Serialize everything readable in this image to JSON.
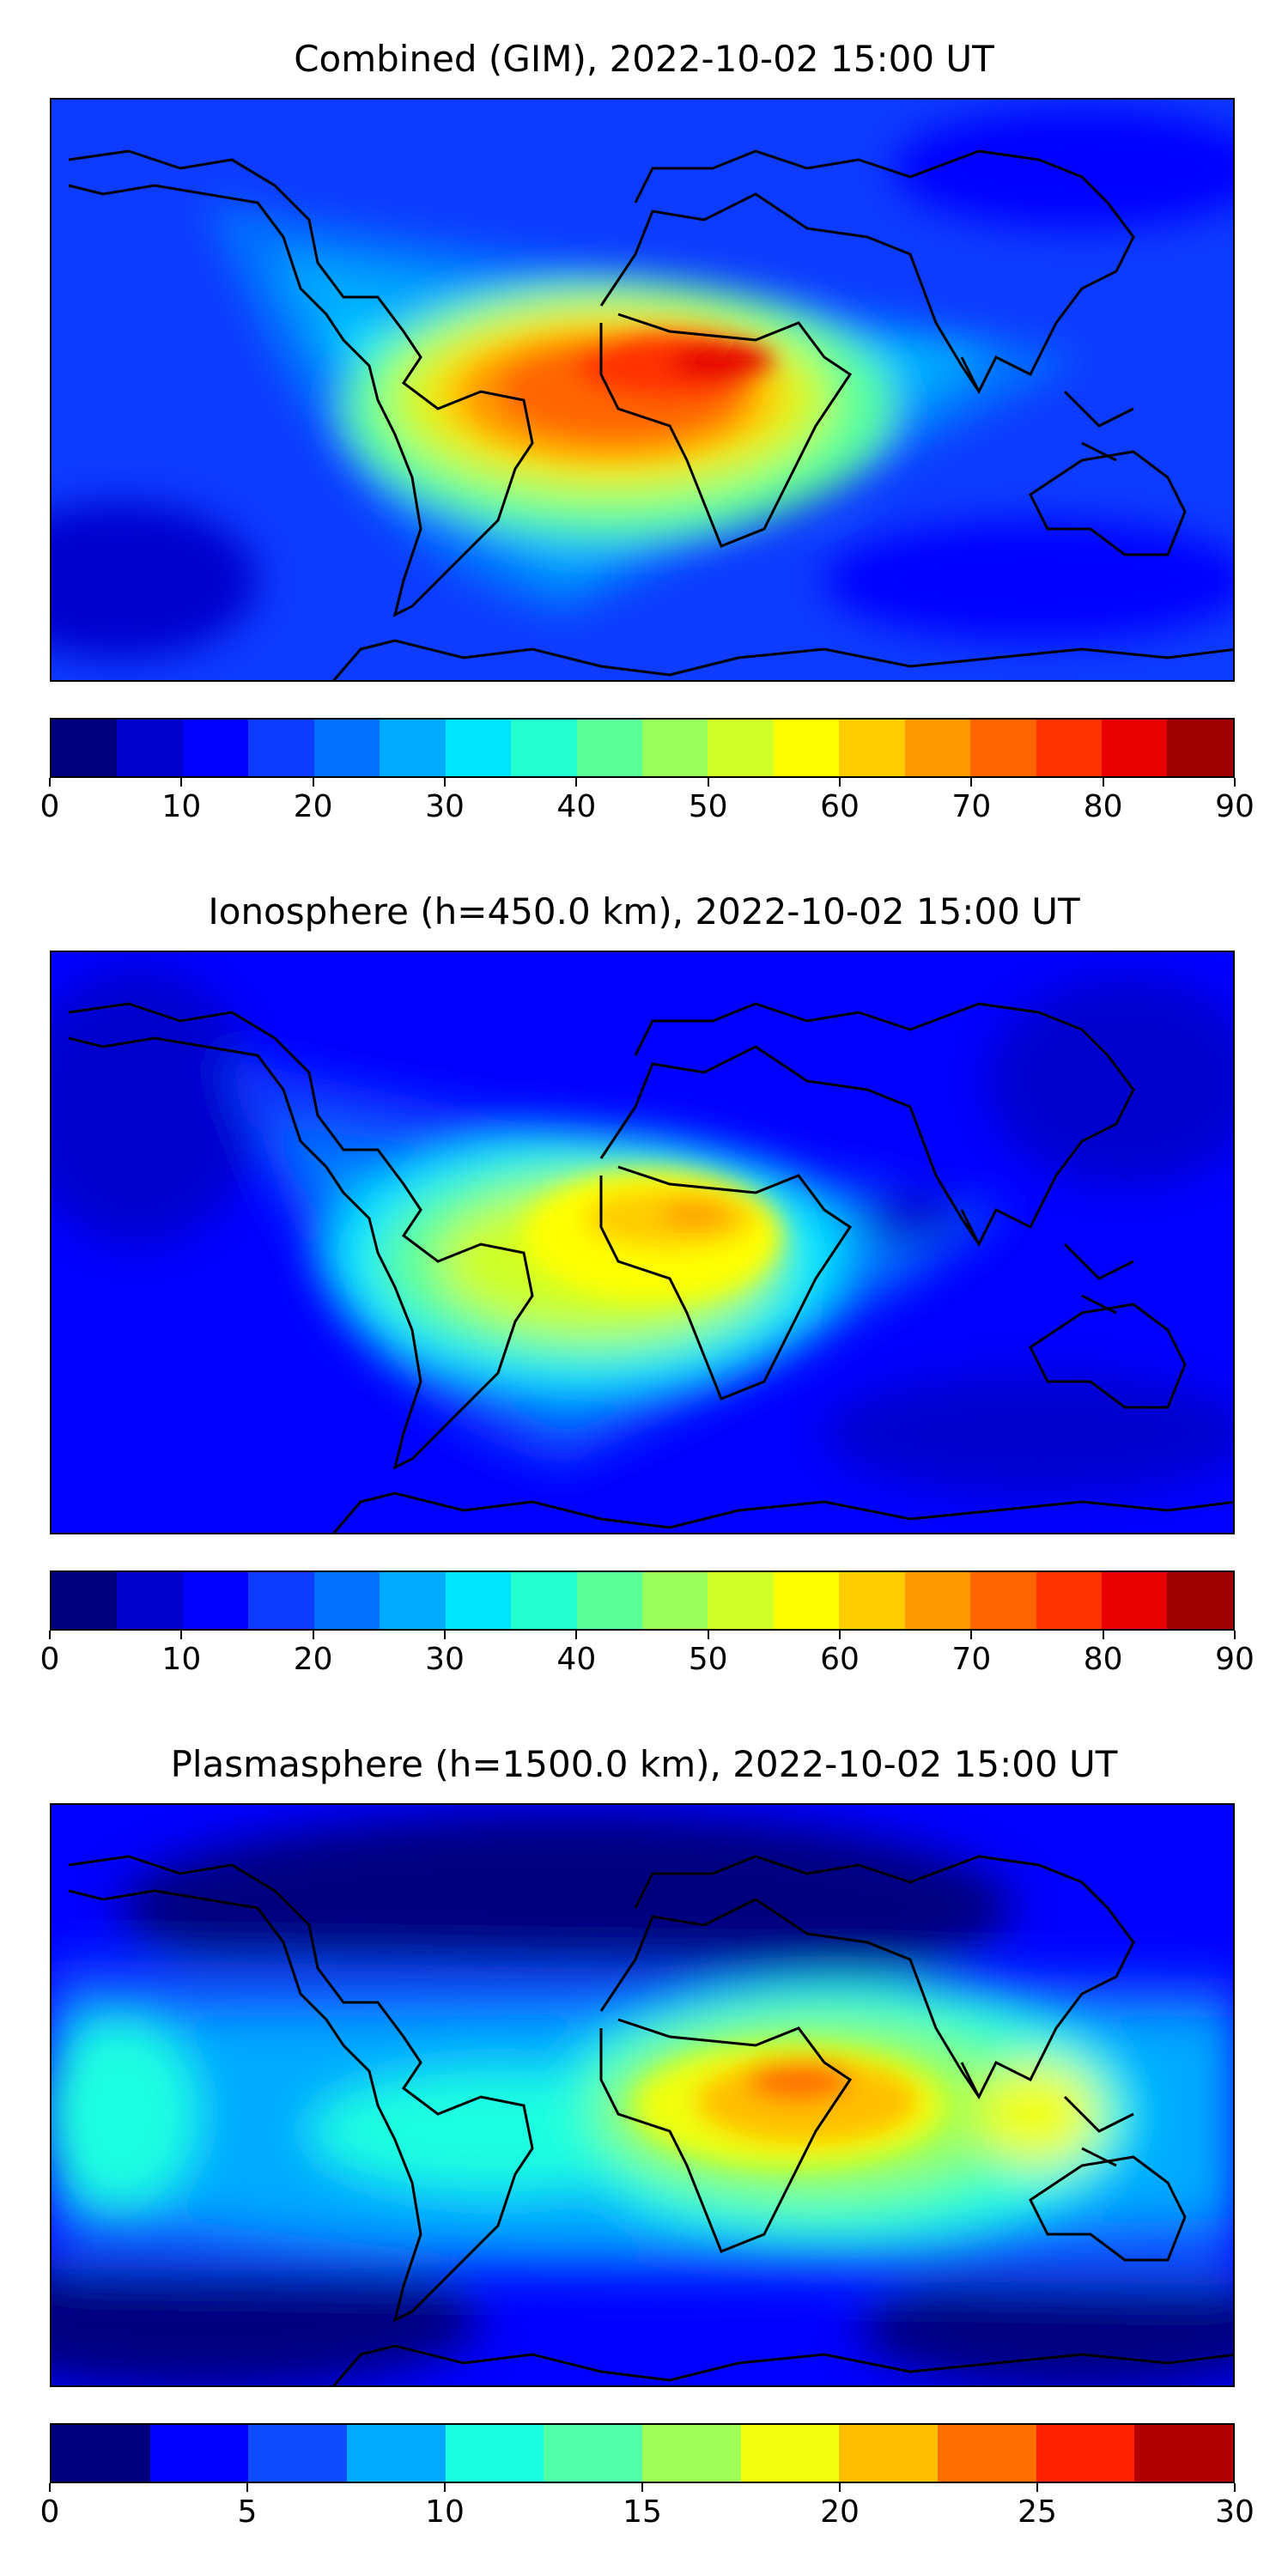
{
  "colors": {
    "scale18": [
      "#00007f",
      "#0000cd",
      "#0000ff",
      "#0d3bff",
      "#0072ff",
      "#00aaff",
      "#00e5ff",
      "#26ffcf",
      "#5aff9a",
      "#9aff5a",
      "#cfff26",
      "#ffff00",
      "#ffcc00",
      "#ff9900",
      "#ff6600",
      "#ff3300",
      "#e60000",
      "#a00000"
    ],
    "scale12": [
      "#00007f",
      "#0000ff",
      "#0d4dff",
      "#00aaff",
      "#1affe0",
      "#52ffa8",
      "#a0ff57",
      "#f0ff0f",
      "#ffbf00",
      "#ff6f00",
      "#ff2200",
      "#b00000"
    ],
    "coast": "#000000"
  },
  "panels": [
    {
      "id": "combined",
      "title": "Combined (GIM), 2022-10-02 15:00 UT",
      "colorbar": {
        "levels": 18,
        "ticks": [
          "0",
          "10",
          "20",
          "30",
          "40",
          "50",
          "60",
          "70",
          "80",
          "90"
        ],
        "min": 0,
        "max": 90
      }
    },
    {
      "id": "ionosphere",
      "title": "Ionosphere  (h=450.0 km), 2022-10-02 15:00 UT",
      "colorbar": {
        "levels": 18,
        "ticks": [
          "0",
          "10",
          "20",
          "30",
          "40",
          "50",
          "60",
          "70",
          "80",
          "90"
        ],
        "min": 0,
        "max": 90
      }
    },
    {
      "id": "plasmasphere",
      "title": "Plasmasphere (h=1500.0 km), 2022-10-02 15:00 UT",
      "colorbar": {
        "levels": 12,
        "ticks": [
          "0",
          "5",
          "10",
          "15",
          "20",
          "25",
          "30"
        ],
        "min": 0,
        "max": 30
      }
    }
  ],
  "chart_data": [
    {
      "type": "heatmap",
      "title": "Combined (GIM), 2022-10-02 15:00 UT",
      "xlabel": "",
      "ylabel": "",
      "colorbar_range": [
        0,
        90
      ],
      "colorbar_ticks": [
        0,
        10,
        20,
        30,
        40,
        50,
        60,
        70,
        80,
        90
      ],
      "peak_value": 85,
      "peak_region": "equatorial Africa / South Atlantic"
    },
    {
      "type": "heatmap",
      "title": "Ionosphere  (h=450.0 km), 2022-10-02 15:00 UT",
      "xlabel": "",
      "ylabel": "",
      "colorbar_range": [
        0,
        90
      ],
      "colorbar_ticks": [
        0,
        10,
        20,
        30,
        40,
        50,
        60,
        70,
        80,
        90
      ],
      "peak_value": 65,
      "peak_region": "West/Central Africa"
    },
    {
      "type": "heatmap",
      "title": "Plasmasphere (h=1500.0 km), 2022-10-02 15:00 UT",
      "xlabel": "",
      "ylabel": "",
      "colorbar_range": [
        0,
        30
      ],
      "colorbar_ticks": [
        0,
        5,
        10,
        15,
        20,
        25,
        30
      ],
      "peak_value": 25,
      "peak_region": "Horn of Africa / Arabian Sea"
    }
  ]
}
